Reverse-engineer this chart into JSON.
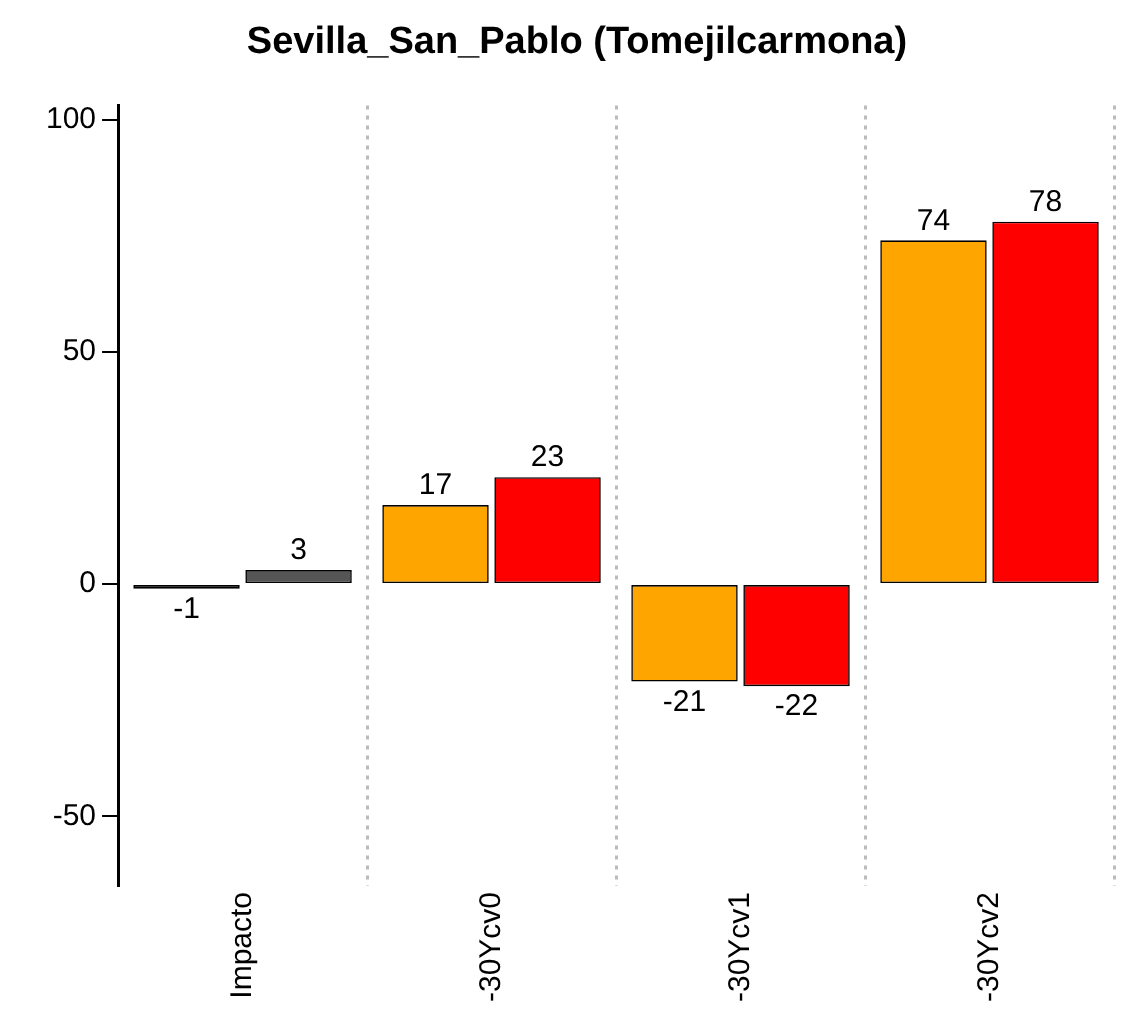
{
  "chart_data": {
    "type": "bar",
    "title": "Sevilla_San_Pablo (Tomejilcarmona)",
    "categories": [
      "Impacto",
      "-30Ycv0",
      "-30Ycv1",
      "-30Ycv2"
    ],
    "series": [
      {
        "colors": [
          "#333333",
          "#ffa500",
          "#ffa500",
          "#ffa500"
        ],
        "values": [
          -1,
          17,
          -21,
          74
        ]
      },
      {
        "colors": [
          "#555555",
          "#ff0000",
          "#ff0000",
          "#ff0000"
        ],
        "values": [
          3,
          23,
          -22,
          78
        ]
      }
    ],
    "ylim": [
      -65,
      103
    ],
    "yticks": [
      -50,
      0,
      50,
      100
    ],
    "grid": "x",
    "data_labels": true,
    "legend": false
  }
}
